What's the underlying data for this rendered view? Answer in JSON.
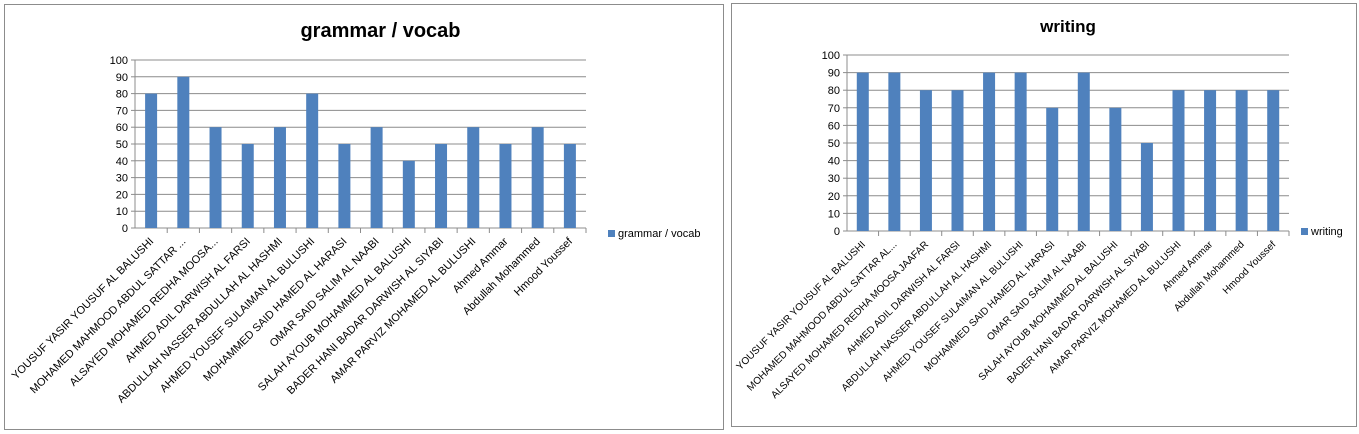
{
  "chart_data": [
    {
      "type": "bar",
      "title": "grammar / vocab",
      "xlabel": "",
      "ylabel": "",
      "ylim": [
        0,
        100
      ],
      "yticks": [
        0,
        10,
        20,
        30,
        40,
        50,
        60,
        70,
        80,
        90,
        100
      ],
      "grid": true,
      "legend": "right",
      "color": "#4f81bd",
      "categories": [
        "YOUSUF YASIR YOUSUF AL BALUSHI",
        "MOHAMED MAHMOOD ABDUL SATTAR ...",
        "ALSAYED MOHAMED  REDHA  MOOSA...",
        "AHMED ADIL DARWISH  AL FARSI",
        "ABDULLAH NASSER ABDULLAH AL HASHMI",
        "AHMED YOUSEF  SULAIMAN AL BULUSHI",
        "MOHAMMED SAID HAMED AL HARASI",
        "OMAR SAID SALIM AL NAABI",
        "SALAH AYOUB MOHAMMED  AL BALUSHI",
        "BADER HANI BADAR DARWISH  AL SIYABI",
        "AMAR PARVIZ MOHAMED AL BULUSHI",
        "Ahmed Ammar",
        "Abdullah Mohammed",
        "Hmood Youssef"
      ],
      "series": [
        {
          "name": "grammar / vocab",
          "values": [
            80,
            90,
            60,
            50,
            60,
            80,
            50,
            60,
            40,
            50,
            60,
            50,
            60,
            50
          ]
        }
      ]
    },
    {
      "type": "bar",
      "title": "writing",
      "xlabel": "",
      "ylabel": "",
      "ylim": [
        0,
        100
      ],
      "yticks": [
        0,
        10,
        20,
        30,
        40,
        50,
        60,
        70,
        80,
        90,
        100
      ],
      "grid": true,
      "legend": "right",
      "color": "#4f81bd",
      "categories": [
        "YOUSUF YASIR YOUSUF AL BALUSHI",
        "MOHAMED MAHMOOD ABDUL SATTAR  AL...",
        "ALSAYED MOHAMED REDHA MOOSA JAAFAR",
        "AHMED ADIL DARWISH  AL FARSI",
        "ABDULLAH NASSER ABDULLAH AL HASHMI",
        "AHMED YOUSEF SULAIMAN AL BULUSHI",
        "MOHAMMED SAID HAMED AL HARASI",
        "OMAR SAID SALIM AL NAABI",
        "SALAH AYOUB MOHAMMED  AL BALUSHI",
        "BADER HANI BADAR DARWISH  AL SIYABI",
        "AMAR PARVIZ MOHAMED AL BULUSHI",
        "Ahmed Ammar",
        "Abdullah Mohammed",
        "Hmood Youssef"
      ],
      "series": [
        {
          "name": "writing",
          "values": [
            90,
            90,
            80,
            80,
            90,
            90,
            70,
            90,
            70,
            50,
            80,
            80,
            80,
            80
          ]
        }
      ]
    }
  ]
}
